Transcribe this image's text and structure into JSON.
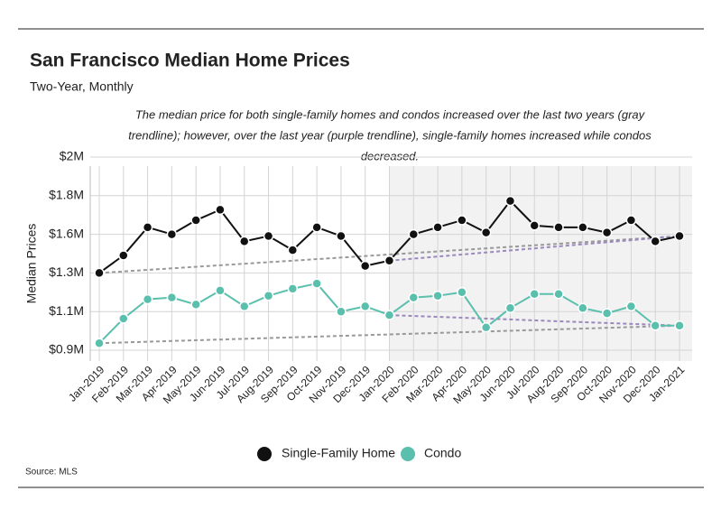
{
  "chart_data": {
    "type": "line",
    "title": "San Francisco Median Home Prices",
    "subtitle": "Two-Year, Monthly",
    "annotation": [
      "The median price for both single-family homes and condos increased over the last two years (gray",
      "trendline); however, over the last year (purple trendline), single-family homes increased while condos",
      "decreased."
    ],
    "y_label": "Median Prices",
    "source": "Source:  MLS",
    "categories": [
      "Jan-2019",
      "Feb-2019",
      "Mar-2019",
      "Apr-2019",
      "May-2019",
      "Jun-2019",
      "Jul-2019",
      "Aug-2019",
      "Sep-2019",
      "Oct-2019",
      "Nov-2019",
      "Dec-2019",
      "Jan-2020",
      "Feb-2020",
      "Mar-2020",
      "Apr-2020",
      "May-2020",
      "Jun-2020",
      "Jul-2020",
      "Aug-2020",
      "Sep-2020",
      "Oct-2020",
      "Nov-2020",
      "Dec-2020",
      "Jan-2021"
    ],
    "series": [
      {
        "name": "Single-Family Home",
        "color": "#111111",
        "values": [
          1.34,
          1.44,
          1.6,
          1.56,
          1.64,
          1.7,
          1.52,
          1.55,
          1.47,
          1.6,
          1.55,
          1.38,
          1.41,
          1.56,
          1.6,
          1.64,
          1.57,
          1.75,
          1.61,
          1.6,
          1.6,
          1.57,
          1.64,
          1.52,
          1.55
        ]
      },
      {
        "name": "Condo",
        "color": "#5bbfad",
        "values": [
          0.94,
          1.08,
          1.19,
          1.2,
          1.16,
          1.24,
          1.15,
          1.21,
          1.25,
          1.28,
          1.12,
          1.15,
          1.1,
          1.2,
          1.21,
          1.23,
          1.03,
          1.14,
          1.22,
          1.22,
          1.14,
          1.11,
          1.15,
          1.04,
          1.04
        ]
      }
    ],
    "trendlines": [
      {
        "color": "#999999",
        "start": "Jan-2019"
      },
      {
        "color": "#9b88bd",
        "start": "Jan-2020"
      }
    ],
    "shade_from": "Jan-2020",
    "ylim": [
      0.9,
      2.0
    ],
    "yticks": [
      {
        "value": 0.9,
        "label": "$0.9M"
      },
      {
        "value": 1.12,
        "label": "$1.1M"
      },
      {
        "value": 1.34,
        "label": "$1.3M"
      },
      {
        "value": 1.56,
        "label": "$1.6M"
      },
      {
        "value": 1.78,
        "label": "$1.8M"
      },
      {
        "value": 2.0,
        "label": "$2M"
      }
    ],
    "grid": true
  }
}
